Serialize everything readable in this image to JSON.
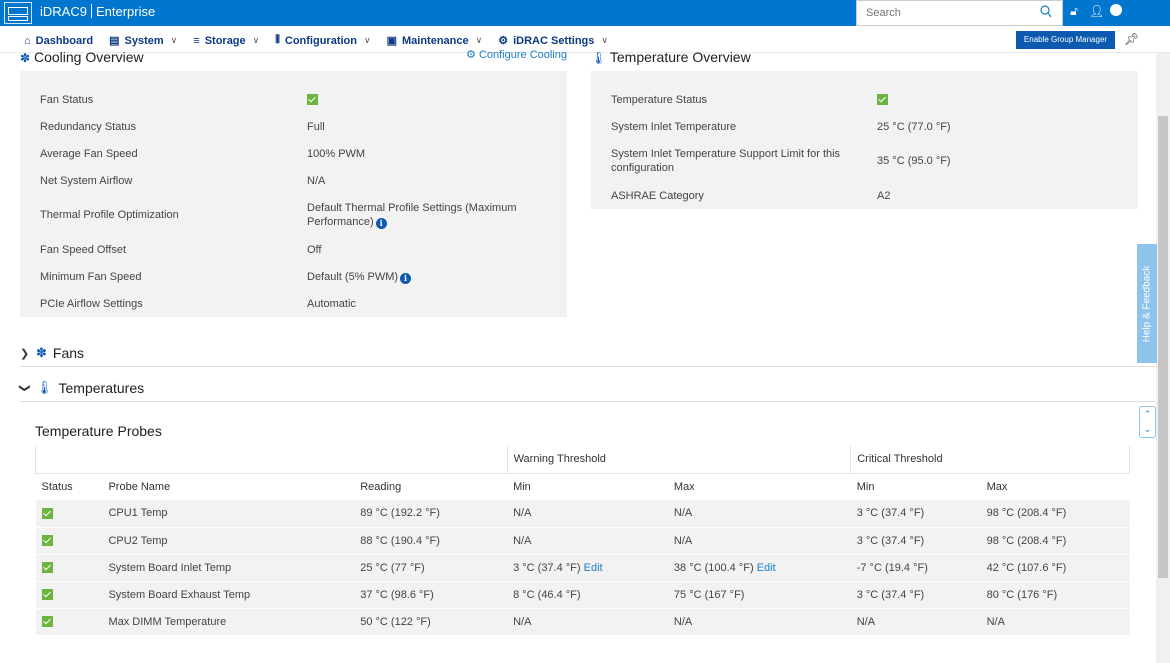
{
  "header": {
    "product": "iDRAC9",
    "edition": "Enterprise",
    "search_placeholder": "Search"
  },
  "nav": {
    "items": [
      {
        "label": "Dashboard",
        "icon": "home-icon",
        "has_menu": false
      },
      {
        "label": "System",
        "icon": "server-icon",
        "has_menu": true
      },
      {
        "label": "Storage",
        "icon": "storage-icon",
        "has_menu": true
      },
      {
        "label": "Configuration",
        "icon": "sliders-icon",
        "has_menu": true
      },
      {
        "label": "Maintenance",
        "icon": "maintenance-icon",
        "has_menu": true
      },
      {
        "label": "iDRAC Settings",
        "icon": "gears-icon",
        "has_menu": true
      }
    ],
    "group_manager_label": "Enable Group Manager"
  },
  "cooling": {
    "title": "Cooling Overview",
    "configure_link": "Configure Cooling",
    "rows": [
      {
        "label": "Fan Status",
        "value": "",
        "status": "ok"
      },
      {
        "label": "Redundancy Status",
        "value": "Full"
      },
      {
        "label": "Average Fan Speed",
        "value": "100% PWM"
      },
      {
        "label": "Net System Airflow",
        "value": "N/A"
      },
      {
        "label": "Thermal Profile Optimization",
        "value": "Default Thermal Profile Settings (Maximum Performance)",
        "info": true
      },
      {
        "label": "Fan Speed Offset",
        "value": "Off"
      },
      {
        "label": "Minimum Fan Speed",
        "value": "Default (5% PWM)",
        "info": true
      },
      {
        "label": "PCIe Airflow Settings",
        "value": "Automatic"
      }
    ]
  },
  "temperature": {
    "title": "Temperature Overview",
    "rows": [
      {
        "label": "Temperature Status",
        "value": "",
        "status": "ok"
      },
      {
        "label": "System Inlet Temperature",
        "value": "25 °C (77.0 °F)"
      },
      {
        "label": "System Inlet Temperature Support Limit for this configuration",
        "value": "35 °C (95.0 °F)"
      },
      {
        "label": "ASHRAE Category",
        "value": "A2"
      }
    ]
  },
  "sections": {
    "fans": "Fans",
    "temperatures": "Temperatures"
  },
  "probes": {
    "title": "Temperature Probes",
    "group_headers": {
      "warning": "Warning Threshold",
      "critical": "Critical Threshold"
    },
    "columns": [
      "Status",
      "Probe Name",
      "Reading",
      "Min",
      "Max",
      "Min",
      "Max"
    ],
    "edit_label": "Edit",
    "rows": [
      {
        "name": "CPU1 Temp",
        "reading": "89 °C (192.2 °F)",
        "warn_min": "N/A",
        "warn_max": "N/A",
        "crit_min": "3 °C (37.4 °F)",
        "crit_max": "98 °C (208.4 °F)"
      },
      {
        "name": "CPU2 Temp",
        "reading": "88 °C (190.4 °F)",
        "warn_min": "N/A",
        "warn_max": "N/A",
        "crit_min": "3 °C (37.4 °F)",
        "crit_max": "98 °C (208.4 °F)"
      },
      {
        "name": "System Board Inlet Temp",
        "reading": "25 °C (77 °F)",
        "warn_min": "3 °C (37.4 °F)",
        "warn_max": "38 °C (100.4 °F)",
        "crit_min": "-7 °C (19.4 °F)",
        "crit_max": "42 °C (107.6 °F)",
        "editable": true
      },
      {
        "name": "System Board Exhaust Temp",
        "reading": "37 °C (98.6 °F)",
        "warn_min": "8 °C (46.4 °F)",
        "warn_max": "75 °C (167 °F)",
        "crit_min": "3 °C (37.4 °F)",
        "crit_max": "80 °C (176 °F)"
      },
      {
        "name": "Max DIMM Temperature",
        "reading": "50 °C (122 °F)",
        "warn_min": "N/A",
        "warn_max": "N/A",
        "crit_min": "N/A",
        "crit_max": "N/A"
      }
    ]
  },
  "side": {
    "feedback_label": "Help & Feedback"
  }
}
